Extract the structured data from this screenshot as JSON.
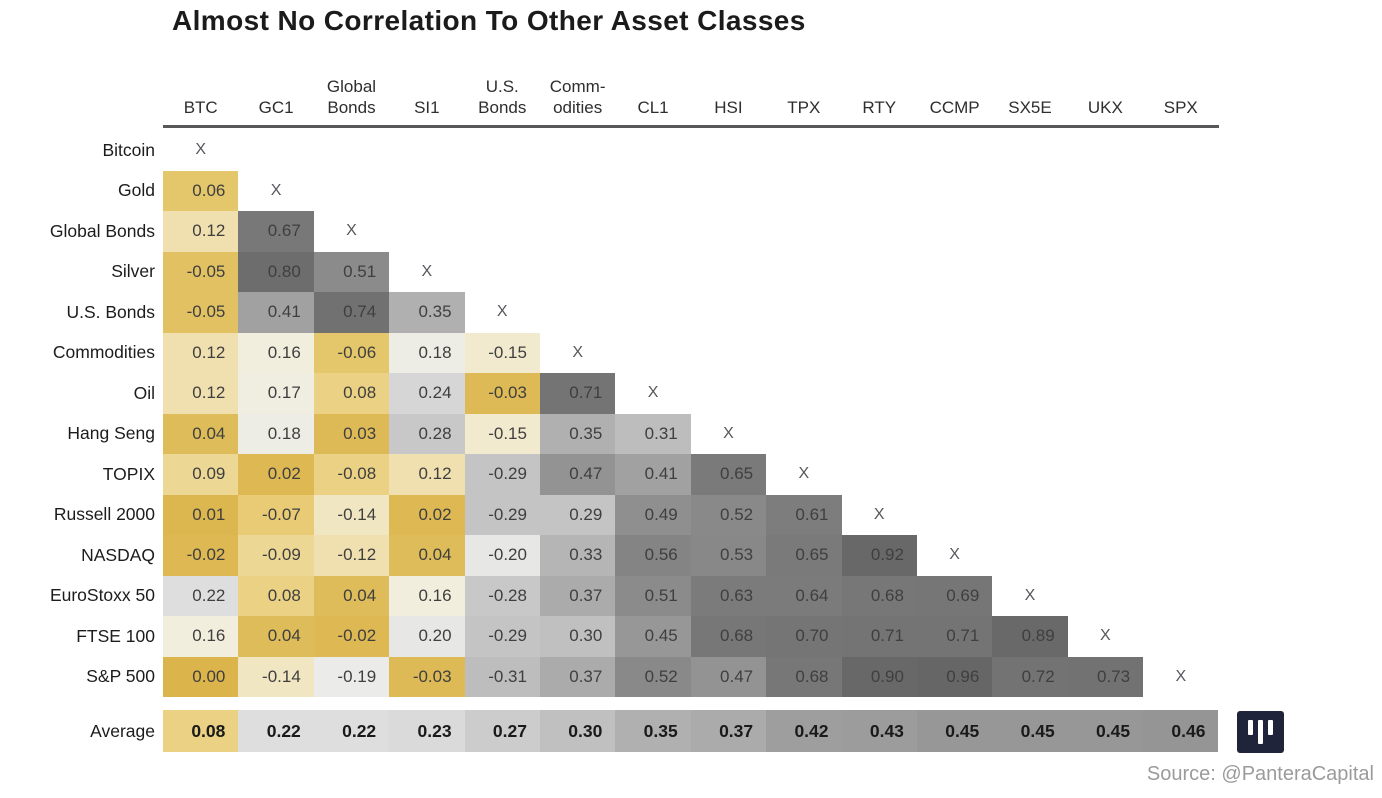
{
  "title": "Almost No Correlation To Other Asset Classes",
  "source": "Source: @PanteraCapital",
  "colors": {
    "background": "#ffffff",
    "title_text": "#1b1b1b",
    "header_text": "#2e2e2e",
    "label_text": "#1c1c1c",
    "value_text": "#3f3f3f",
    "avg_value_text": "#1a1a1a",
    "x_marker_text": "#55585c",
    "header_rule": "#58585a",
    "source_text": "#9b9b9b",
    "logo_bg": "#20243a",
    "logo_bars": "#ffffff",
    "gold_low_corr": "#dcb44c",
    "gray_high_corr": "#656565"
  },
  "chart_data": {
    "type": "heatmap",
    "title": "Almost No Correlation To Other Asset Classes",
    "description": "Lower-triangle correlation matrix; gold = |correlation| near 0, dark gray = high |correlation|. X marks the self-correlation diagonal.",
    "diagonal_marker": "X",
    "legend_position": "none",
    "columns": [
      "BTC",
      "GC1",
      "Global\nBonds",
      "SI1",
      "U.S.\nBonds",
      "Comm-\nodities",
      "CL1",
      "HSI",
      "TPX",
      "RTY",
      "CCMP",
      "SX5E",
      "UKX",
      "SPX"
    ],
    "rows": [
      {
        "label": "Bitcoin",
        "values": []
      },
      {
        "label": "Gold",
        "values": [
          0.06
        ]
      },
      {
        "label": "Global Bonds",
        "values": [
          0.12,
          0.67
        ]
      },
      {
        "label": "Silver",
        "values": [
          -0.05,
          0.8,
          0.51
        ]
      },
      {
        "label": "U.S. Bonds",
        "values": [
          -0.05,
          0.41,
          0.74,
          0.35
        ]
      },
      {
        "label": "Commodities",
        "values": [
          0.12,
          0.16,
          -0.06,
          0.18,
          -0.15
        ]
      },
      {
        "label": "Oil",
        "values": [
          0.12,
          0.17,
          0.08,
          0.24,
          -0.03,
          0.71
        ]
      },
      {
        "label": "Hang Seng",
        "values": [
          0.04,
          0.18,
          0.03,
          0.28,
          -0.15,
          0.35,
          0.31
        ]
      },
      {
        "label": "TOPIX",
        "values": [
          0.09,
          0.02,
          -0.08,
          0.12,
          -0.29,
          0.47,
          0.41,
          0.65
        ]
      },
      {
        "label": "Russell 2000",
        "values": [
          0.01,
          -0.07,
          -0.14,
          0.02,
          -0.29,
          0.29,
          0.49,
          0.52,
          0.61
        ]
      },
      {
        "label": "NASDAQ",
        "values": [
          -0.02,
          -0.09,
          -0.12,
          0.04,
          -0.2,
          0.33,
          0.56,
          0.53,
          0.65,
          0.92
        ]
      },
      {
        "label": "EuroStoxx 50",
        "values": [
          0.22,
          0.08,
          0.04,
          0.16,
          -0.28,
          0.37,
          0.51,
          0.63,
          0.64,
          0.68,
          0.69
        ]
      },
      {
        "label": "FTSE 100",
        "values": [
          0.16,
          0.04,
          -0.02,
          0.2,
          -0.29,
          0.3,
          0.45,
          0.68,
          0.7,
          0.71,
          0.71,
          0.89
        ]
      },
      {
        "label": "S&P 500",
        "values": [
          0.0,
          -0.14,
          -0.19,
          -0.03,
          -0.31,
          0.37,
          0.52,
          0.47,
          0.68,
          0.9,
          0.96,
          0.72,
          0.73
        ]
      }
    ],
    "average_row": {
      "label": "Average",
      "values": [
        0.08,
        0.22,
        0.22,
        0.23,
        0.27,
        0.3,
        0.35,
        0.37,
        0.42,
        0.43,
        0.45,
        0.45,
        0.45,
        0.46
      ]
    },
    "color_scale_stops": [
      [
        0.0,
        "#dcb44c"
      ],
      [
        0.04,
        "#ddbc59"
      ],
      [
        0.07,
        "#e8cb74"
      ],
      [
        0.1,
        "#eedda4"
      ],
      [
        0.13,
        "#f1e2b4"
      ],
      [
        0.16,
        "#f2eedd"
      ],
      [
        0.19,
        "#ebebe9"
      ],
      [
        0.23,
        "#dadada"
      ],
      [
        0.28,
        "#c8c8c8"
      ],
      [
        0.33,
        "#b5b5b5"
      ],
      [
        0.38,
        "#a8a8a8"
      ],
      [
        0.45,
        "#979797"
      ],
      [
        0.52,
        "#898989"
      ],
      [
        0.6,
        "#7e7e7e"
      ],
      [
        0.68,
        "#777777"
      ],
      [
        0.75,
        "#707070"
      ],
      [
        0.85,
        "#6a6a6a"
      ],
      [
        1.0,
        "#656565"
      ]
    ]
  }
}
